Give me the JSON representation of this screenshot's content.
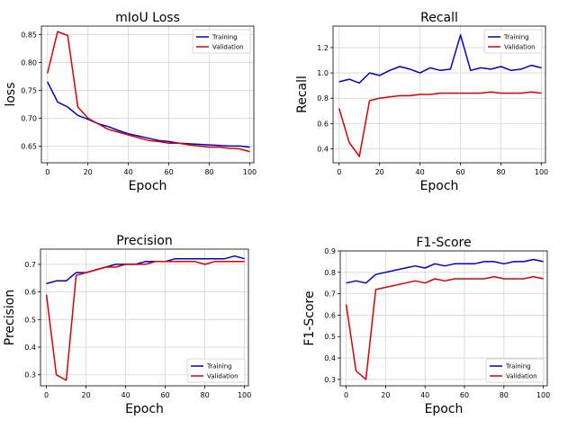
{
  "chart_data": [
    {
      "type": "line",
      "title": "mIoU Loss",
      "xlabel": "Epoch",
      "ylabel": "loss",
      "xlim": [
        -3,
        102
      ],
      "ylim": [
        0.62,
        0.865
      ],
      "xticks": [
        0,
        20,
        40,
        60,
        80,
        100
      ],
      "yticks": [
        0.65,
        0.7,
        0.75,
        0.8,
        0.85
      ],
      "ytick_labels": [
        "0.65",
        "0.70",
        "0.75",
        "0.80",
        "0.85"
      ],
      "grid": true,
      "legend": "top-right",
      "x": [
        0,
        5,
        10,
        15,
        20,
        25,
        30,
        35,
        40,
        45,
        50,
        55,
        60,
        65,
        70,
        75,
        80,
        85,
        90,
        95,
        100
      ],
      "series": [
        {
          "name": "Training",
          "color": "#0000cc",
          "values": [
            0.765,
            0.729,
            0.72,
            0.705,
            0.698,
            0.69,
            0.685,
            0.678,
            0.672,
            0.668,
            0.664,
            0.66,
            0.658,
            0.655,
            0.654,
            0.653,
            0.652,
            0.651,
            0.65,
            0.65,
            0.648
          ]
        },
        {
          "name": "Validation",
          "color": "#dd0000",
          "values": [
            0.78,
            0.855,
            0.848,
            0.72,
            0.7,
            0.69,
            0.68,
            0.675,
            0.67,
            0.665,
            0.66,
            0.658,
            0.655,
            0.655,
            0.652,
            0.65,
            0.648,
            0.648,
            0.646,
            0.645,
            0.64
          ]
        }
      ]
    },
    {
      "type": "line",
      "title": "Recall",
      "xlabel": "Epoch",
      "ylabel": "Recall",
      "xlim": [
        -3,
        102
      ],
      "ylim": [
        0.29,
        1.37
      ],
      "xticks": [
        0,
        20,
        40,
        60,
        80,
        100
      ],
      "yticks": [
        0.4,
        0.6,
        0.8,
        1.0,
        1.2
      ],
      "ytick_labels": [
        "0.4",
        "0.6",
        "0.8",
        "1.0",
        "1.2"
      ],
      "grid": true,
      "legend": "top-right",
      "x": [
        0,
        5,
        10,
        15,
        20,
        25,
        30,
        35,
        40,
        45,
        50,
        55,
        60,
        65,
        70,
        75,
        80,
        85,
        90,
        95,
        100
      ],
      "series": [
        {
          "name": "Training",
          "color": "#0000cc",
          "values": [
            0.93,
            0.95,
            0.92,
            1.0,
            0.98,
            1.02,
            1.05,
            1.03,
            1.0,
            1.04,
            1.02,
            1.03,
            1.3,
            1.02,
            1.04,
            1.03,
            1.05,
            1.02,
            1.03,
            1.06,
            1.04
          ]
        },
        {
          "name": "Validation",
          "color": "#dd0000",
          "values": [
            0.72,
            0.45,
            0.34,
            0.78,
            0.8,
            0.81,
            0.82,
            0.82,
            0.83,
            0.83,
            0.84,
            0.84,
            0.84,
            0.84,
            0.84,
            0.85,
            0.84,
            0.84,
            0.84,
            0.85,
            0.84
          ]
        }
      ]
    },
    {
      "type": "line",
      "title": "Precision",
      "xlabel": "Epoch",
      "ylabel": "Precision",
      "xlim": [
        -3,
        102
      ],
      "ylim": [
        0.26,
        0.755
      ],
      "xticks": [
        0,
        20,
        40,
        60,
        80,
        100
      ],
      "yticks": [
        0.3,
        0.4,
        0.5,
        0.6,
        0.7
      ],
      "ytick_labels": [
        "0.3",
        "0.4",
        "0.5",
        "0.6",
        "0.7"
      ],
      "grid": true,
      "legend": "bottom-right",
      "x": [
        0,
        5,
        10,
        15,
        20,
        25,
        30,
        35,
        40,
        45,
        50,
        55,
        60,
        65,
        70,
        75,
        80,
        85,
        90,
        95,
        100
      ],
      "series": [
        {
          "name": "Training",
          "color": "#0000cc",
          "values": [
            0.63,
            0.64,
            0.64,
            0.67,
            0.67,
            0.68,
            0.69,
            0.7,
            0.7,
            0.7,
            0.71,
            0.71,
            0.71,
            0.72,
            0.72,
            0.72,
            0.72,
            0.72,
            0.72,
            0.73,
            0.72
          ]
        },
        {
          "name": "Validation",
          "color": "#dd0000",
          "values": [
            0.59,
            0.3,
            0.28,
            0.66,
            0.67,
            0.68,
            0.69,
            0.69,
            0.7,
            0.7,
            0.7,
            0.71,
            0.71,
            0.71,
            0.71,
            0.71,
            0.7,
            0.71,
            0.71,
            0.71,
            0.71
          ]
        }
      ]
    },
    {
      "type": "line",
      "title": "F1-Score",
      "xlabel": "Epoch",
      "ylabel": "F1-Score",
      "xlim": [
        -3,
        102
      ],
      "ylim": [
        0.27,
        0.9
      ],
      "xticks": [
        0,
        20,
        40,
        60,
        80,
        100
      ],
      "yticks": [
        0.3,
        0.4,
        0.5,
        0.6,
        0.7,
        0.8,
        0.9
      ],
      "ytick_labels": [
        "0.3",
        "0.4",
        "0.5",
        "0.6",
        "0.7",
        "0.8",
        "0.9"
      ],
      "grid": true,
      "legend": "bottom-right",
      "x": [
        0,
        5,
        10,
        15,
        20,
        25,
        30,
        35,
        40,
        45,
        50,
        55,
        60,
        65,
        70,
        75,
        80,
        85,
        90,
        95,
        100
      ],
      "series": [
        {
          "name": "Training",
          "color": "#0000cc",
          "values": [
            0.75,
            0.76,
            0.75,
            0.79,
            0.8,
            0.81,
            0.82,
            0.83,
            0.82,
            0.84,
            0.83,
            0.84,
            0.84,
            0.84,
            0.85,
            0.85,
            0.84,
            0.85,
            0.85,
            0.86,
            0.85
          ]
        },
        {
          "name": "Validation",
          "color": "#dd0000",
          "values": [
            0.65,
            0.34,
            0.3,
            0.72,
            0.73,
            0.74,
            0.75,
            0.76,
            0.75,
            0.77,
            0.76,
            0.77,
            0.77,
            0.77,
            0.77,
            0.78,
            0.77,
            0.77,
            0.77,
            0.78,
            0.77
          ]
        }
      ]
    }
  ]
}
